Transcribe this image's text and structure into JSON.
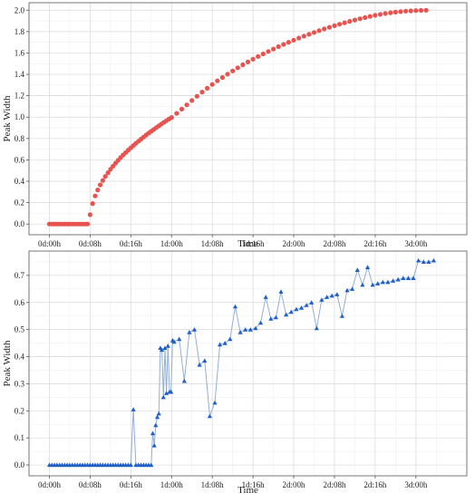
{
  "chart_data": [
    {
      "type": "scatter",
      "title": "",
      "xlabel": "Time",
      "ylabel": "Peak Width",
      "grid": true,
      "xlim_hours": [
        -4,
        82
      ],
      "ylim": [
        -0.1,
        2.07
      ],
      "x_ticks_hours": [
        0,
        8,
        16,
        24,
        32,
        40,
        48,
        56,
        64,
        72
      ],
      "x_tick_labels": [
        "0d:00h",
        "0d:08h",
        "0d:16h",
        "1d:00h",
        "1d:08h",
        "1d:16h",
        "2d:00h",
        "2d:08h",
        "2d:16h",
        "3d:00h"
      ],
      "y_ticks": [
        0.0,
        0.2,
        0.4,
        0.6,
        0.8,
        1.0,
        1.2,
        1.4,
        1.6,
        1.8,
        2.0
      ],
      "y_tick_labels": [
        "0.0",
        "0.2",
        "0.4",
        "0.6",
        "0.8",
        "1.0",
        "1.2",
        "1.4",
        "1.6",
        "1.8",
        "2.0"
      ],
      "series": [
        {
          "color": "#e8534f",
          "marker": "circle",
          "x_hours": [
            0,
            0.5,
            1,
            1.5,
            2,
            2.5,
            3,
            3.5,
            4,
            4.5,
            5,
            5.5,
            6,
            6.5,
            7,
            7.5,
            8,
            8.5,
            9,
            9.5,
            10,
            10.5,
            11,
            11.5,
            12,
            12.5,
            13,
            13.5,
            14,
            14.5,
            15,
            15.5,
            16,
            16.5,
            17,
            17.5,
            18,
            18.5,
            19,
            19.5,
            20,
            20.5,
            21,
            21.5,
            22,
            22.5,
            23,
            23.5,
            24,
            25,
            26,
            27,
            28,
            29,
            30,
            31,
            32,
            33,
            34,
            35,
            36,
            37,
            38,
            39,
            40,
            41,
            42,
            43,
            44,
            45,
            46,
            47,
            48,
            49,
            50,
            51,
            52,
            53,
            54,
            55,
            56,
            57,
            58,
            59,
            60,
            61,
            62,
            63,
            64,
            65,
            66,
            67,
            68,
            69,
            70,
            71,
            72,
            73,
            74
          ],
          "y": [
            0,
            0,
            0,
            0,
            0,
            0,
            0,
            0,
            0,
            0,
            0,
            0,
            0,
            0,
            0,
            0,
            0.087,
            0.192,
            0.263,
            0.319,
            0.366,
            0.408,
            0.445,
            0.48,
            0.512,
            0.542,
            0.57,
            0.596,
            0.622,
            0.646,
            0.669,
            0.692,
            0.713,
            0.734,
            0.755,
            0.775,
            0.794,
            0.813,
            0.832,
            0.85,
            0.867,
            0.885,
            0.902,
            0.918,
            0.935,
            0.951,
            0.966,
            0.982,
            0.997,
            1.035,
            1.075,
            1.115,
            1.155,
            1.195,
            1.234,
            1.27,
            1.305,
            1.339,
            1.371,
            1.402,
            1.432,
            1.461,
            1.489,
            1.516,
            1.542,
            1.567,
            1.591,
            1.614,
            1.637,
            1.659,
            1.68,
            1.7,
            1.72,
            1.739,
            1.757,
            1.775,
            1.792,
            1.809,
            1.825,
            1.84,
            1.855,
            1.869,
            1.883,
            1.896,
            1.908,
            1.92,
            1.931,
            1.942,
            1.952,
            1.961,
            1.969,
            1.976,
            1.982,
            1.987,
            1.991,
            1.994,
            1.996,
            1.998,
            2.0
          ]
        }
      ]
    },
    {
      "type": "line",
      "title": "",
      "xlabel": "Time",
      "ylabel": "Peak Width",
      "grid": true,
      "xlim_hours": [
        -4,
        82
      ],
      "ylim": [
        -0.04,
        0.79
      ],
      "x_ticks_hours": [
        0,
        8,
        16,
        24,
        32,
        40,
        48,
        56,
        64,
        72
      ],
      "x_tick_labels": [
        "0d:00h",
        "0d:08h",
        "0d:16h",
        "1d:00h",
        "1d:08h",
        "1d:16h",
        "2d:00h",
        "2d:08h",
        "2d:16h",
        "3d:00h"
      ],
      "y_ticks": [
        0.0,
        0.1,
        0.2,
        0.3,
        0.4,
        0.5,
        0.6,
        0.7
      ],
      "y_tick_labels": [
        "0.0",
        "0.1",
        "0.2",
        "0.3",
        "0.4",
        "0.5",
        "0.6",
        "0.7"
      ],
      "series": [
        {
          "color": "#1f5fc7",
          "line_color": "#93afd6",
          "marker": "triangle",
          "x_hours": [
            0,
            0.5,
            1,
            1.5,
            2,
            2.5,
            3,
            3.5,
            4,
            4.5,
            5,
            5.5,
            6,
            6.5,
            7,
            7.5,
            8,
            8.5,
            9,
            9.5,
            10,
            10.5,
            11,
            11.5,
            12,
            12.5,
            13,
            13.5,
            14,
            14.5,
            15,
            15.5,
            16,
            16.5,
            17,
            17.5,
            18,
            18.5,
            19,
            19.5,
            20,
            20.3,
            20.6,
            20.9,
            21.2,
            21.5,
            21.8,
            22.1,
            22.4,
            22.7,
            23,
            23.3,
            23.6,
            23.9,
            24.2,
            24.5,
            25.5,
            26.5,
            27.5,
            28.5,
            29.5,
            30.5,
            31.5,
            32.5,
            33.5,
            34.5,
            35.5,
            36.5,
            37.5,
            38.5,
            39.5,
            40.5,
            41.5,
            42.5,
            43.5,
            44.5,
            45.5,
            46.5,
            47.5,
            48.5,
            49.5,
            50.5,
            51.5,
            52.5,
            53.5,
            54.5,
            55.5,
            56.5,
            57.5,
            58.5,
            59.5,
            60.5,
            61.5,
            62.5,
            63.5,
            64.5,
            65.5,
            66.5,
            67.5,
            68.5,
            69.5,
            70.5,
            71.5,
            72.5,
            73.5,
            74.5,
            75.5
          ],
          "y": [
            0,
            0,
            0,
            0,
            0,
            0,
            0,
            0,
            0,
            0,
            0,
            0,
            0,
            0,
            0,
            0,
            0,
            0,
            0,
            0,
            0,
            0,
            0,
            0,
            0,
            0,
            0,
            0,
            0,
            0,
            0,
            0,
            0,
            0.205,
            0,
            0,
            0,
            0,
            0,
            0,
            0,
            0.117,
            0.072,
            0.147,
            0.177,
            0.19,
            0.432,
            0.425,
            0.25,
            0.432,
            0.265,
            0.44,
            0.27,
            0.27,
            0.46,
            0.455,
            0.465,
            0.31,
            0.49,
            0.5,
            0.37,
            0.385,
            0.18,
            0.23,
            0.445,
            0.45,
            0.465,
            0.585,
            0.49,
            0.5,
            0.5,
            0.505,
            0.525,
            0.62,
            0.54,
            0.545,
            0.64,
            0.555,
            0.565,
            0.575,
            0.58,
            0.59,
            0.6,
            0.505,
            0.61,
            0.62,
            0.625,
            0.63,
            0.55,
            0.645,
            0.65,
            0.72,
            0.665,
            0.73,
            0.665,
            0.67,
            0.675,
            0.675,
            0.68,
            0.685,
            0.69,
            0.69,
            0.69,
            0.755,
            0.75,
            0.75,
            0.755
          ]
        }
      ]
    }
  ]
}
